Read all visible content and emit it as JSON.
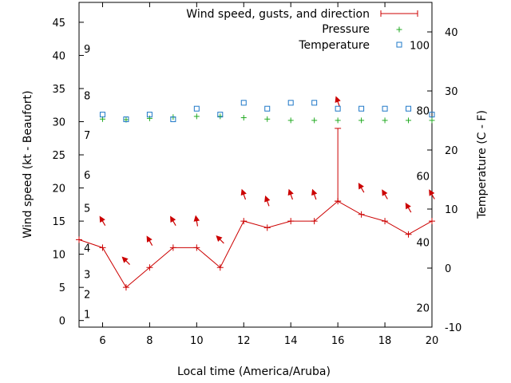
{
  "chart_data": {
    "type": "line",
    "xlabel": "Local time (America/Aruba)",
    "ylabel_left": "Wind speed (kt - Beaufort)",
    "ylabel_right": "Temperature (C - F)",
    "xlim": [
      5,
      20
    ],
    "ylim_left": [
      -1,
      48
    ],
    "ylim_right": [
      -10,
      45
    ],
    "x_ticks": [
      6,
      8,
      10,
      12,
      14,
      16,
      18,
      20
    ],
    "y_left_ticks": [
      0,
      5,
      10,
      15,
      20,
      25,
      30,
      35,
      40,
      45
    ],
    "y_right_ticks": [
      -10,
      0,
      10,
      20,
      30,
      40
    ],
    "beaufort_labels": [
      {
        "label": "1",
        "y": 1
      },
      {
        "label": "2",
        "y": 4
      },
      {
        "label": "3",
        "y": 7
      },
      {
        "label": "4",
        "y": 11
      },
      {
        "label": "5",
        "y": 17
      },
      {
        "label": "6",
        "y": 22
      },
      {
        "label": "7",
        "y": 28
      },
      {
        "label": "8",
        "y": 34
      },
      {
        "label": "9",
        "y": 41
      }
    ],
    "fahrenheit_labels": [
      {
        "label": "20",
        "temp": -6.7
      },
      {
        "label": "40",
        "temp": 4.4
      },
      {
        "label": "60",
        "temp": 15.6
      },
      {
        "label": "80",
        "temp": 26.7
      },
      {
        "label": "100",
        "temp": 37.8
      }
    ],
    "legend": {
      "position": "top-right",
      "entries": [
        "Wind speed, gusts, and direction",
        "Pressure",
        "Temperature"
      ]
    },
    "series": [
      {
        "name": "Wind speed, gusts, and direction",
        "color": "#cc0000",
        "x": [
          5,
          6,
          7,
          8,
          9,
          10,
          11,
          12,
          13,
          14,
          15,
          16,
          17,
          18,
          19,
          20
        ],
        "values": [
          12.2,
          11,
          5,
          8,
          11,
          11,
          8,
          15,
          14,
          15,
          15,
          18,
          16,
          15,
          13,
          15
        ],
        "gust": {
          "x": 16,
          "low": 18,
          "high": 29
        }
      },
      {
        "name": "Wind direction",
        "color": "#cc0000",
        "x": [
          6,
          7,
          8,
          9,
          10,
          11,
          12,
          13,
          14,
          15,
          16,
          17,
          18,
          19,
          20
        ],
        "y": [
          15,
          9,
          12,
          15,
          15,
          12.2,
          19,
          18,
          19,
          19,
          33,
          20,
          19,
          17,
          19
        ],
        "direction_deg": [
          60,
          45,
          60,
          60,
          80,
          45,
          70,
          70,
          70,
          70,
          70,
          60,
          60,
          60,
          60
        ]
      },
      {
        "name": "Pressure",
        "color": "#22aa22",
        "x": [
          6,
          7,
          8,
          9,
          10,
          11,
          12,
          13,
          14,
          15,
          16,
          17,
          18,
          19,
          20
        ],
        "values": [
          30.4,
          30.3,
          30.5,
          30.7,
          30.8,
          30.8,
          30.6,
          30.4,
          30.2,
          30.2,
          30.2,
          30.2,
          30.2,
          30.2,
          30.2
        ]
      },
      {
        "name": "Temperature",
        "color": "#1e78c8",
        "x": [
          6,
          7,
          8,
          9,
          10,
          11,
          12,
          13,
          14,
          15,
          16,
          17,
          18,
          19,
          20
        ],
        "values": [
          26,
          25.2,
          26,
          25.2,
          27,
          26,
          28,
          27,
          28,
          28,
          27,
          27,
          27,
          27,
          26
        ]
      }
    ]
  }
}
